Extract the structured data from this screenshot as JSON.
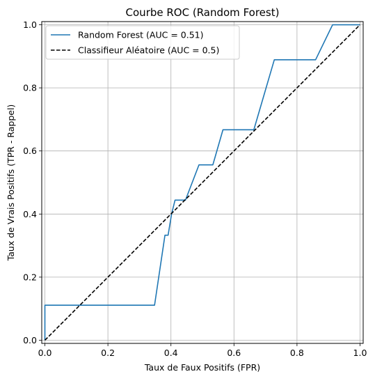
{
  "chart_data": {
    "type": "line",
    "title": "Courbe ROC (Random Forest)",
    "xlabel": "Taux de Faux Positifs (FPR)",
    "ylabel": "Taux de Vrais Positifs (TPR - Rappel)",
    "xlim": [
      -0.01,
      1.01
    ],
    "ylim": [
      -0.01,
      1.01
    ],
    "x_ticks": [
      {
        "value": 0.0,
        "label": "0.0"
      },
      {
        "value": 0.2,
        "label": "0.2"
      },
      {
        "value": 0.4,
        "label": "0.4"
      },
      {
        "value": 0.6,
        "label": "0.6"
      },
      {
        "value": 0.8,
        "label": "0.8"
      },
      {
        "value": 1.0,
        "label": "1.0"
      }
    ],
    "y_ticks": [
      {
        "value": 0.0,
        "label": "0.0"
      },
      {
        "value": 0.2,
        "label": "0.2"
      },
      {
        "value": 0.4,
        "label": "0.4"
      },
      {
        "value": 0.6,
        "label": "0.6"
      },
      {
        "value": 0.8,
        "label": "0.8"
      },
      {
        "value": 1.0,
        "label": "1.0"
      }
    ],
    "grid": true,
    "legend_position": "top-left",
    "series": [
      {
        "name": "Random Forest (AUC = 0.51)",
        "color": "#1f77b4",
        "style": "solid",
        "points": [
          [
            0.0,
            0.0
          ],
          [
            0.0,
            0.111
          ],
          [
            0.348,
            0.111
          ],
          [
            0.381,
            0.333
          ],
          [
            0.391,
            0.333
          ],
          [
            0.402,
            0.4
          ],
          [
            0.413,
            0.444
          ],
          [
            0.446,
            0.444
          ],
          [
            0.489,
            0.556
          ],
          [
            0.533,
            0.556
          ],
          [
            0.565,
            0.667
          ],
          [
            0.663,
            0.667
          ],
          [
            0.728,
            0.889
          ],
          [
            0.859,
            0.889
          ],
          [
            0.913,
            1.0
          ],
          [
            1.0,
            1.0
          ]
        ]
      },
      {
        "name": "Classifieur Aléatoire (AUC = 0.5)",
        "color": "#000000",
        "style": "dashed",
        "points": [
          [
            0.0,
            0.0
          ],
          [
            1.0,
            1.0
          ]
        ]
      }
    ]
  }
}
